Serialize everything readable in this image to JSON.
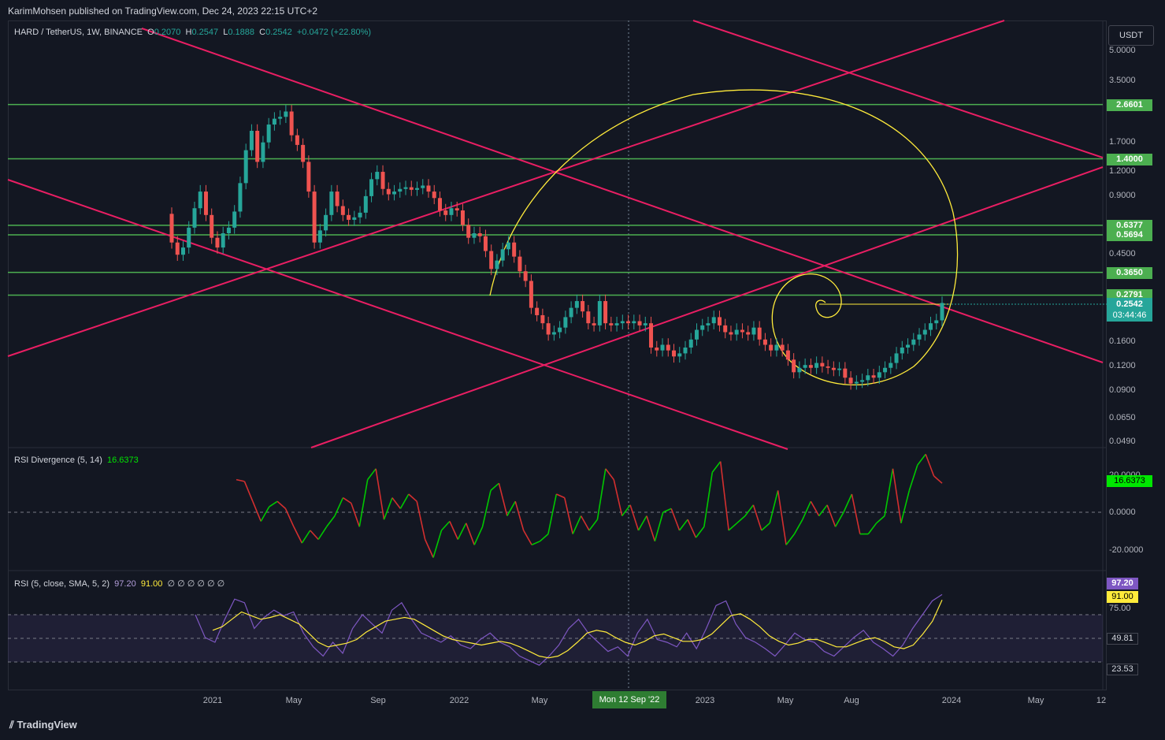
{
  "header": {
    "published": "KarimMohsen published on TradingView.com, Dec 24, 2023 22:15 UTC+2"
  },
  "currency": "USDT",
  "symbol": {
    "name": "HARD / TetherUS, 1W, BINANCE",
    "o_label": "O",
    "o": "0.2070",
    "h_label": "H",
    "h": "0.2547",
    "l_label": "L",
    "l": "0.1888",
    "c_label": "C",
    "c": "0.2542",
    "change": "+0.0472 (+22.80%)"
  },
  "price_axis": [
    "5.0000",
    "3.5000",
    "1.7000",
    "1.2000",
    "0.9000",
    "0.4500",
    "0.1600",
    "0.1200",
    "0.0900",
    "0.0650",
    "0.0490"
  ],
  "levels": [
    {
      "label": "2.6601",
      "color": "#4caf50"
    },
    {
      "label": "1.4000",
      "color": "#4caf50"
    },
    {
      "label": "0.6377",
      "color": "#4caf50"
    },
    {
      "label": "0.5694",
      "color": "#4caf50"
    },
    {
      "label": "0.3650",
      "color": "#4caf50"
    },
    {
      "label": "0.2791",
      "color": "#4caf50"
    }
  ],
  "last_price": {
    "value": "0.2542",
    "countdown": "03:44:46",
    "color": "#26a69a"
  },
  "rsi_div": {
    "title": "RSI Divergence (5, 14)",
    "value": "16.6373",
    "axis": [
      "20.0000",
      "0.0000",
      "-20.0000"
    ],
    "value_color": "#00e600"
  },
  "rsi": {
    "title": "RSI (5, close, SMA, 5, 2)",
    "rsi_value": "97.20",
    "sma_value": "91.00",
    "extra": "∅ ∅ ∅ ∅ ∅ ∅",
    "axis": [
      "75.00",
      "49.81",
      "23.53"
    ],
    "rsi_color": "#7e57c2",
    "sma_color": "#ffeb3b"
  },
  "time_axis": [
    "2021",
    "May",
    "Sep",
    "2022",
    "May",
    "2023",
    "May",
    "Aug",
    "2024",
    "May",
    "12"
  ],
  "crosshair_label": "Mon 12 Sep '22",
  "footer": "TradingView",
  "chart_data": {
    "type": "candlestick",
    "candles": [
      {
        "o": 0.73,
        "c": 0.52
      },
      {
        "o": 0.52,
        "c": 0.45
      },
      {
        "o": 0.45,
        "c": 0.49
      },
      {
        "o": 0.49,
        "c": 0.62
      },
      {
        "o": 0.62,
        "c": 0.78
      },
      {
        "o": 0.78,
        "c": 0.95
      },
      {
        "o": 0.95,
        "c": 0.72
      },
      {
        "o": 0.72,
        "c": 0.55
      },
      {
        "o": 0.55,
        "c": 0.49
      },
      {
        "o": 0.49,
        "c": 0.58
      },
      {
        "o": 0.58,
        "c": 0.62
      },
      {
        "o": 0.62,
        "c": 0.75
      },
      {
        "o": 0.75,
        "c": 1.05
      },
      {
        "o": 1.05,
        "c": 1.55
      },
      {
        "o": 1.55,
        "c": 1.95
      },
      {
        "o": 1.95,
        "c": 1.35
      },
      {
        "o": 1.35,
        "c": 1.7
      },
      {
        "o": 1.7,
        "c": 2.1
      },
      {
        "o": 2.1,
        "c": 2.25
      },
      {
        "o": 2.25,
        "c": 2.3
      },
      {
        "o": 2.3,
        "c": 2.45
      },
      {
        "o": 2.45,
        "c": 1.85
      },
      {
        "o": 1.85,
        "c": 1.65
      },
      {
        "o": 1.65,
        "c": 1.35
      },
      {
        "o": 1.35,
        "c": 0.95
      },
      {
        "o": 0.95,
        "c": 0.52
      },
      {
        "o": 0.52,
        "c": 0.6
      },
      {
        "o": 0.6,
        "c": 0.72
      },
      {
        "o": 0.72,
        "c": 0.95
      },
      {
        "o": 0.95,
        "c": 0.8
      },
      {
        "o": 0.8,
        "c": 0.72
      },
      {
        "o": 0.72,
        "c": 0.68
      },
      {
        "o": 0.68,
        "c": 0.7
      },
      {
        "o": 0.7,
        "c": 0.74
      },
      {
        "o": 0.74,
        "c": 0.9
      },
      {
        "o": 0.9,
        "c": 1.1
      },
      {
        "o": 1.1,
        "c": 1.2
      },
      {
        "o": 1.2,
        "c": 0.98
      },
      {
        "o": 0.98,
        "c": 0.92
      },
      {
        "o": 0.92,
        "c": 0.95
      },
      {
        "o": 0.95,
        "c": 0.98
      },
      {
        "o": 0.98,
        "c": 1.0
      },
      {
        "o": 1.0,
        "c": 0.97
      },
      {
        "o": 0.97,
        "c": 0.99
      },
      {
        "o": 0.99,
        "c": 1.02
      },
      {
        "o": 1.02,
        "c": 0.95
      },
      {
        "o": 0.95,
        "c": 0.88
      },
      {
        "o": 0.88,
        "c": 0.76
      },
      {
        "o": 0.76,
        "c": 0.72
      },
      {
        "o": 0.72,
        "c": 0.78
      },
      {
        "o": 0.78,
        "c": 0.76
      },
      {
        "o": 0.76,
        "c": 0.64
      },
      {
        "o": 0.64,
        "c": 0.55
      },
      {
        "o": 0.55,
        "c": 0.58
      },
      {
        "o": 0.58,
        "c": 0.56
      },
      {
        "o": 0.56,
        "c": 0.47
      },
      {
        "o": 0.47,
        "c": 0.38
      },
      {
        "o": 0.38,
        "c": 0.42
      },
      {
        "o": 0.42,
        "c": 0.48
      },
      {
        "o": 0.48,
        "c": 0.52
      },
      {
        "o": 0.52,
        "c": 0.44
      },
      {
        "o": 0.44,
        "c": 0.37
      },
      {
        "o": 0.37,
        "c": 0.33
      },
      {
        "o": 0.33,
        "c": 0.24
      },
      {
        "o": 0.24,
        "c": 0.22
      },
      {
        "o": 0.22,
        "c": 0.2
      },
      {
        "o": 0.2,
        "c": 0.175
      },
      {
        "o": 0.175,
        "c": 0.18
      },
      {
        "o": 0.18,
        "c": 0.19
      },
      {
        "o": 0.19,
        "c": 0.215
      },
      {
        "o": 0.215,
        "c": 0.24
      },
      {
        "o": 0.24,
        "c": 0.26
      },
      {
        "o": 0.26,
        "c": 0.23
      },
      {
        "o": 0.23,
        "c": 0.2
      },
      {
        "o": 0.2,
        "c": 0.195
      },
      {
        "o": 0.195,
        "c": 0.26
      },
      {
        "o": 0.26,
        "c": 0.2
      },
      {
        "o": 0.2,
        "c": 0.195
      },
      {
        "o": 0.195,
        "c": 0.2
      },
      {
        "o": 0.2,
        "c": 0.205
      },
      {
        "o": 0.205,
        "c": 0.2
      },
      {
        "o": 0.2,
        "c": 0.205
      },
      {
        "o": 0.205,
        "c": 0.195
      },
      {
        "o": 0.195,
        "c": 0.2
      },
      {
        "o": 0.2,
        "c": 0.15
      },
      {
        "o": 0.15,
        "c": 0.145
      },
      {
        "o": 0.145,
        "c": 0.155
      },
      {
        "o": 0.155,
        "c": 0.145
      },
      {
        "o": 0.145,
        "c": 0.135
      },
      {
        "o": 0.135,
        "c": 0.14
      },
      {
        "o": 0.14,
        "c": 0.15
      },
      {
        "o": 0.15,
        "c": 0.165
      },
      {
        "o": 0.165,
        "c": 0.185
      },
      {
        "o": 0.185,
        "c": 0.195
      },
      {
        "o": 0.195,
        "c": 0.2
      },
      {
        "o": 0.2,
        "c": 0.215
      },
      {
        "o": 0.215,
        "c": 0.195
      },
      {
        "o": 0.195,
        "c": 0.18
      },
      {
        "o": 0.18,
        "c": 0.175
      },
      {
        "o": 0.175,
        "c": 0.185
      },
      {
        "o": 0.185,
        "c": 0.18
      },
      {
        "o": 0.18,
        "c": 0.175
      },
      {
        "o": 0.175,
        "c": 0.19
      },
      {
        "o": 0.19,
        "c": 0.165
      },
      {
        "o": 0.165,
        "c": 0.155
      },
      {
        "o": 0.155,
        "c": 0.145
      },
      {
        "o": 0.145,
        "c": 0.155
      },
      {
        "o": 0.155,
        "c": 0.145
      },
      {
        "o": 0.145,
        "c": 0.13
      },
      {
        "o": 0.13,
        "c": 0.112
      },
      {
        "o": 0.112,
        "c": 0.118
      },
      {
        "o": 0.118,
        "c": 0.122
      },
      {
        "o": 0.122,
        "c": 0.118
      },
      {
        "o": 0.118,
        "c": 0.125
      },
      {
        "o": 0.125,
        "c": 0.12
      },
      {
        "o": 0.12,
        "c": 0.118
      },
      {
        "o": 0.118,
        "c": 0.115
      },
      {
        "o": 0.115,
        "c": 0.117
      },
      {
        "o": 0.117,
        "c": 0.105
      },
      {
        "o": 0.105,
        "c": 0.098
      },
      {
        "o": 0.098,
        "c": 0.1
      },
      {
        "o": 0.1,
        "c": 0.102
      },
      {
        "o": 0.102,
        "c": 0.108
      },
      {
        "o": 0.108,
        "c": 0.105
      },
      {
        "o": 0.105,
        "c": 0.112
      },
      {
        "o": 0.112,
        "c": 0.118
      },
      {
        "o": 0.118,
        "c": 0.125
      },
      {
        "o": 0.125,
        "c": 0.14
      },
      {
        "o": 0.14,
        "c": 0.15
      },
      {
        "o": 0.15,
        "c": 0.155
      },
      {
        "o": 0.155,
        "c": 0.165
      },
      {
        "o": 0.165,
        "c": 0.175
      },
      {
        "o": 0.175,
        "c": 0.185
      },
      {
        "o": 0.185,
        "c": 0.2
      },
      {
        "o": 0.2,
        "c": 0.207
      },
      {
        "o": 0.207,
        "c": 0.2542
      }
    ],
    "rsi_div_values": [
      18,
      17,
      6,
      -5,
      3,
      6,
      2,
      -8,
      -17,
      -10,
      -15,
      -8,
      -2,
      8,
      5,
      -8,
      18,
      24,
      -4,
      8,
      2,
      10,
      6,
      -15,
      -25,
      -10,
      -5,
      -15,
      -6,
      -18,
      -8,
      12,
      16,
      -2,
      6,
      -10,
      -18,
      -16,
      -12,
      10,
      8,
      -12,
      -2,
      -10,
      -4,
      24,
      18,
      -2,
      4,
      -10,
      -2,
      -16,
      0,
      2,
      -10,
      -4,
      -14,
      -8,
      22,
      28,
      -10,
      -6,
      -2,
      4,
      -10,
      -6,
      12,
      -18,
      -12,
      -4,
      6,
      -2,
      4,
      -8,
      0,
      10,
      -12,
      -12,
      -6,
      -2,
      24,
      -6,
      12,
      26,
      32,
      20,
      16
    ],
    "rsi_values": [
      75,
      50,
      45,
      70,
      92,
      88,
      60,
      72,
      80,
      74,
      78,
      55,
      40,
      30,
      45,
      33,
      60,
      75,
      65,
      55,
      80,
      88,
      70,
      55,
      50,
      45,
      52,
      42,
      38,
      48,
      55,
      45,
      40,
      30,
      25,
      20,
      30,
      42,
      60,
      70,
      55,
      45,
      35,
      40,
      30,
      55,
      70,
      48,
      45,
      40,
      55,
      38,
      60,
      85,
      90,
      65,
      50,
      45,
      38,
      30,
      42,
      55,
      48,
      45,
      35,
      30,
      40,
      50,
      58,
      45,
      38,
      30,
      42,
      60,
      75,
      90,
      97
    ],
    "sma_values": [
      58,
      62,
      70,
      78,
      74,
      70,
      72,
      75,
      70,
      65,
      55,
      45,
      40,
      42,
      44,
      48,
      56,
      62,
      68,
      70,
      72,
      70,
      64,
      58,
      52,
      48,
      46,
      44,
      42,
      44,
      46,
      44,
      40,
      35,
      30,
      28,
      30,
      36,
      45,
      55,
      58,
      56,
      50,
      45,
      42,
      46,
      52,
      54,
      50,
      46,
      46,
      48,
      54,
      64,
      74,
      76,
      70,
      62,
      52,
      46,
      42,
      44,
      48,
      48,
      44,
      40,
      40,
      44,
      48,
      50,
      46,
      40,
      38,
      42,
      54,
      68,
      91
    ]
  }
}
